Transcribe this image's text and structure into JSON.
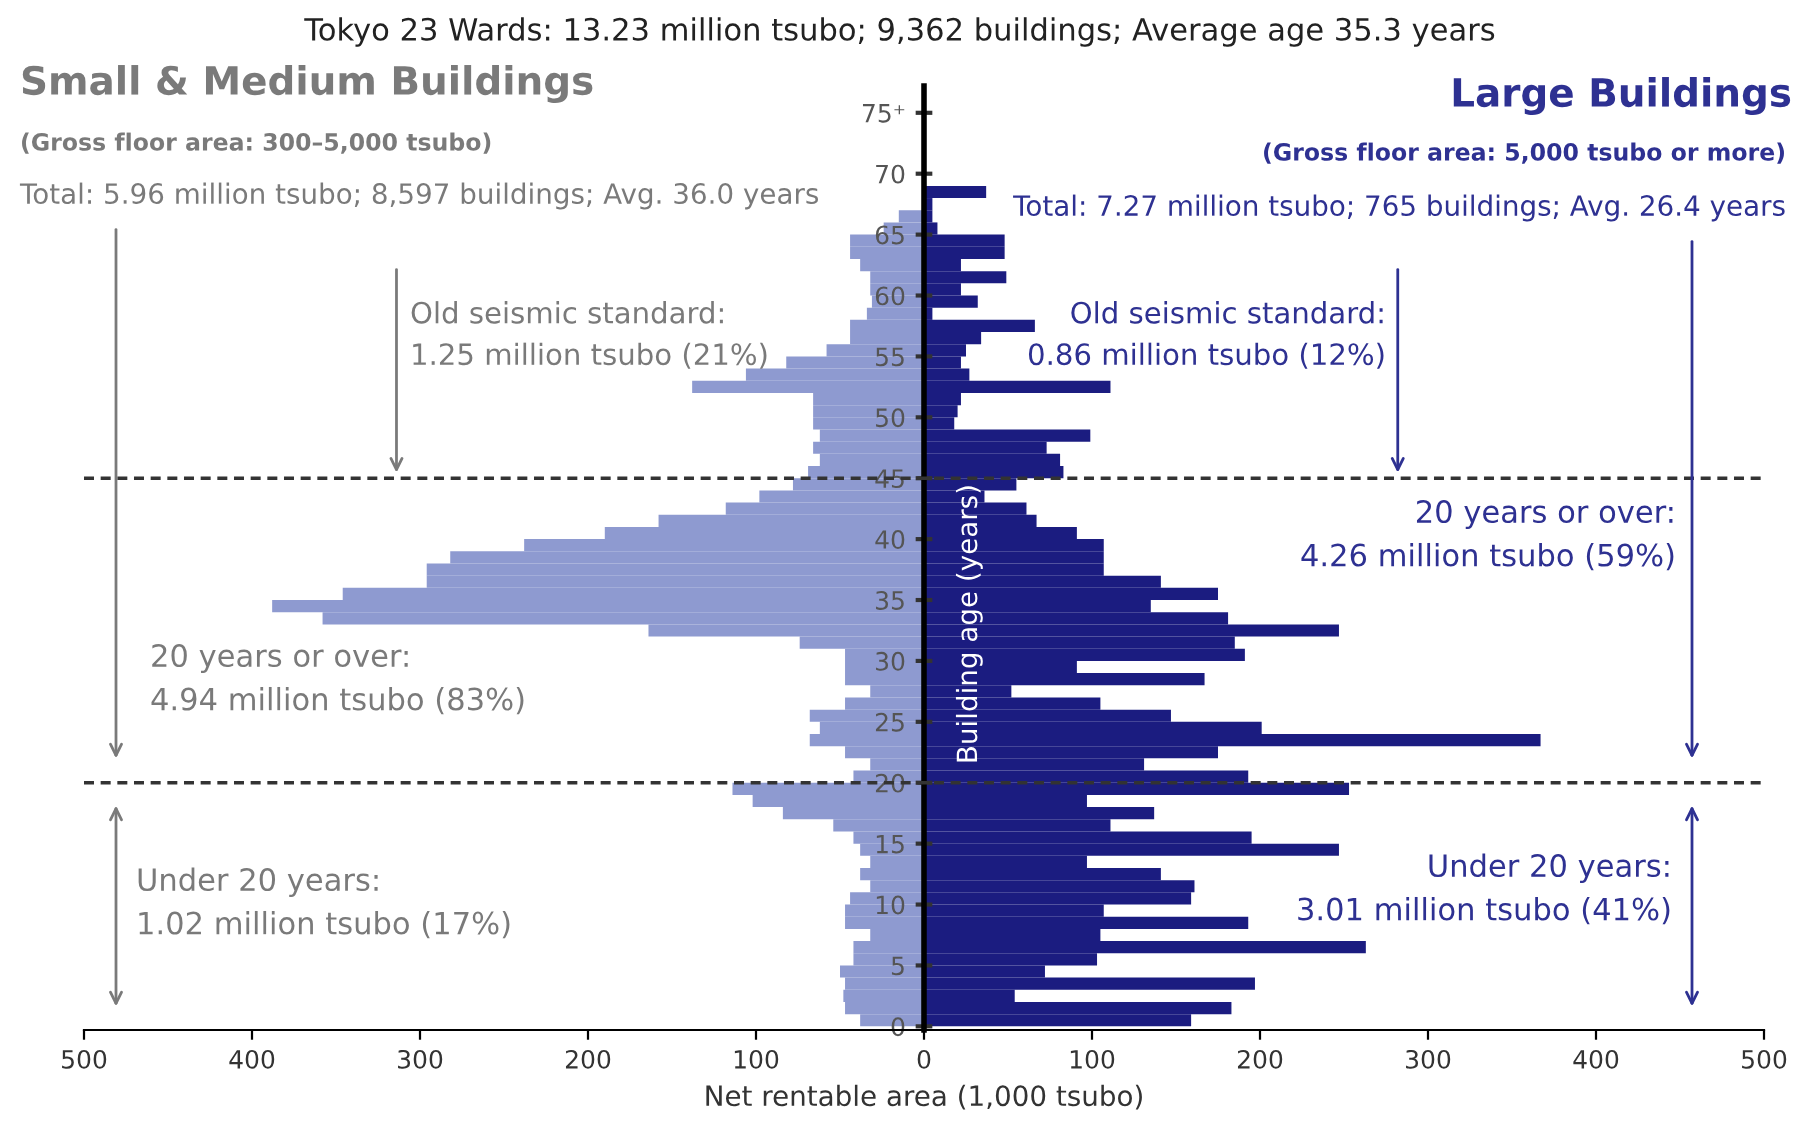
{
  "chart_data": {
    "type": "bar",
    "orientation": "horizontal",
    "stacked": true,
    "title": "Tokyo 23 Wards: 13.23 million tsubo; 9,362 buildings; Average age 35.3 years",
    "xlabel": "Net rentable area (1,000 tsubo)",
    "ylabel": "Building age (years)",
    "categories": [
      "75⁺",
      null,
      null,
      null,
      null,
      "70",
      null,
      null,
      null,
      null,
      "65",
      null,
      null,
      null,
      null,
      "60",
      null,
      null,
      null,
      null,
      "55",
      null,
      null,
      null,
      null,
      "50",
      null,
      null,
      null,
      null,
      "45",
      null,
      null,
      null,
      null,
      "40",
      null,
      null,
      null,
      null,
      "35",
      null,
      null,
      null,
      null,
      "30",
      null,
      null,
      null,
      null,
      "25",
      null,
      null,
      null,
      null,
      "20",
      null,
      null,
      null,
      null,
      "15",
      null,
      null,
      null,
      null,
      "10",
      null,
      null,
      null,
      null,
      "5",
      null,
      null,
      null,
      null,
      "0"
    ],
    "series": [
      {
        "color": "#8e9ad0",
        "values": [
          null,
          null,
          null,
          null,
          null,
          null,
          null,
          null,
          null,
          -15,
          -24,
          -44,
          -44,
          -38,
          -32,
          -32,
          -31,
          -34,
          -44,
          -44,
          -58,
          -82,
          -106,
          -138,
          -66,
          -66,
          -66,
          -62,
          -66,
          -62,
          -69,
          -78,
          -98,
          -118,
          -158,
          -190,
          -238,
          -282,
          -296,
          -296,
          -346,
          -388,
          -358,
          -164,
          -74,
          -47,
          -47,
          -47,
          -32,
          -47,
          -68,
          -62,
          -68,
          -47,
          -32,
          -42,
          -114,
          -102,
          -84,
          -54,
          -42,
          -38,
          -32,
          -38,
          -32,
          -44,
          -47,
          -47,
          -32,
          -42,
          -42,
          -50,
          -47,
          -48,
          -47,
          -38
        ]
      },
      {
        "color": "#1b1c80",
        "values": [
          null,
          null,
          null,
          null,
          null,
          null,
          null,
          37,
          5,
          5,
          8,
          48,
          48,
          22,
          49,
          22,
          32,
          5,
          66,
          34,
          25,
          22,
          27,
          111,
          22,
          20,
          18,
          99,
          73,
          81,
          83,
          55,
          36,
          61,
          67,
          91,
          107,
          107,
          107,
          141,
          175,
          135,
          181,
          247,
          185,
          191,
          91,
          167,
          52,
          105,
          147,
          201,
          367,
          175,
          131,
          193,
          253,
          97,
          137,
          111,
          195,
          247,
          97,
          141,
          161,
          159,
          107,
          193,
          105,
          263,
          103,
          72,
          197,
          54,
          183,
          159
        ]
      }
    ],
    "xlim": [
      -500,
      500
    ],
    "xticks": [
      {
        "value": -500,
        "label": "500"
      },
      {
        "value": -400,
        "label": "400"
      },
      {
        "value": -300,
        "label": "300"
      },
      {
        "value": -200,
        "label": "200"
      },
      {
        "value": -100,
        "label": "100"
      },
      0,
      100,
      200,
      300,
      400,
      500
    ],
    "ref_lines": [
      {
        "axis": "y",
        "value": "45",
        "color": "#333333",
        "line_style": "dashed"
      },
      {
        "axis": "y",
        "value": "20",
        "color": "#333333",
        "line_style": "dashed"
      }
    ],
    "annotations": [
      "Small & Medium Buildings",
      "(Gross floor area: 300–5,000 tsubo)",
      "Total: 5.96 million tsubo; 8,597 buildings; Avg. 36.0 years",
      {
        "text": "Old seismic standard:\n1.25 million tsubo (21%)",
        "x": -314,
        "y": "45"
      },
      "20 years or over:\n4.94 million tsubo (83%)",
      "Under 20 years:\n1.02 million tsubo (17%)",
      "Large Buildings",
      "(Gross floor area: 5,000 tsubo or more)",
      "Total: 7.27 million tsubo; 765 buildings; Avg. 26.4 years",
      {
        "text": "Old seismic standard:\n0.86 million tsubo (12%)",
        "x": 282,
        "y": "45"
      },
      "20 years or over:\n4.26 million tsubo (59%)",
      "Under 20 years:\n3.01 million tsubo (41%)"
    ]
  }
}
